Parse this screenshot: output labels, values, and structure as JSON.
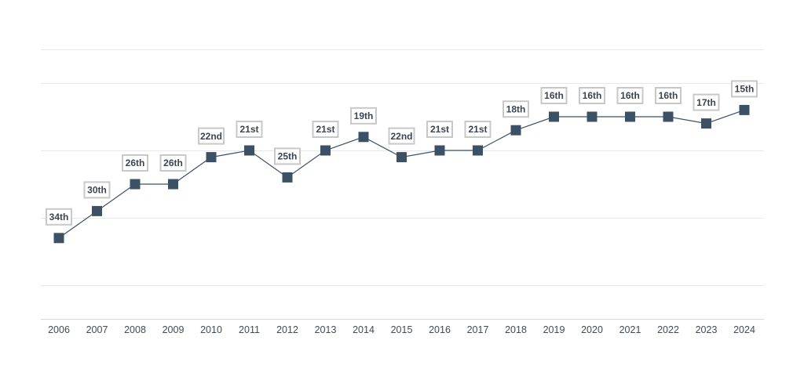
{
  "chart_data": {
    "type": "line",
    "title": "",
    "xlabel": "",
    "ylabel": "",
    "x": [
      "2006",
      "2007",
      "2008",
      "2009",
      "2010",
      "2011",
      "2012",
      "2013",
      "2014",
      "2015",
      "2016",
      "2017",
      "2018",
      "2019",
      "2020",
      "2021",
      "2022",
      "2023",
      "2024"
    ],
    "series": [
      {
        "values": [
          34,
          30,
          26,
          26,
          22,
          21,
          25,
          21,
          19,
          22,
          21,
          21,
          18,
          16,
          16,
          16,
          16,
          17,
          15
        ],
        "labels": [
          "34th",
          "30th",
          "26th",
          "26th",
          "22nd",
          "21st",
          "25th",
          "21st",
          "19th",
          "22nd",
          "21st",
          "21st",
          "18th",
          "16th",
          "16th",
          "16th",
          "16th",
          "17th",
          "15th"
        ]
      }
    ],
    "y_inverted": true,
    "ylim": [
      46,
      6
    ],
    "grid": true,
    "legend": "none",
    "colors": {
      "marker": "#3d5166",
      "line": "#3d5166",
      "grid": "#e6e8ee",
      "label_border": "#c8c8c8",
      "label_text": "#3d4450",
      "tick_text": "#444a55"
    },
    "marker_shape": "square"
  }
}
